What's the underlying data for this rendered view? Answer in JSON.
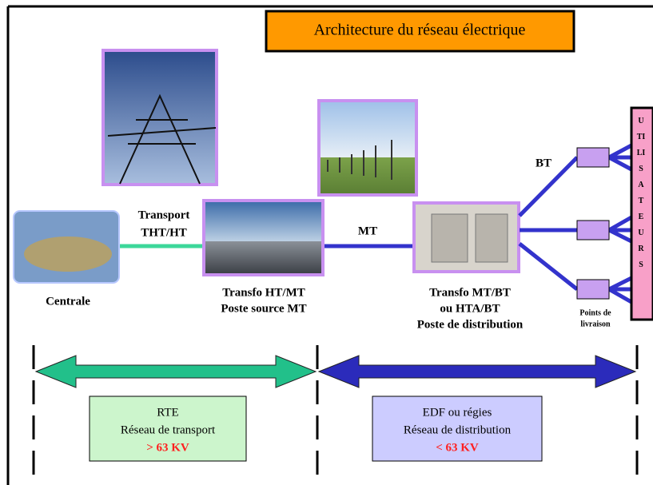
{
  "title": "Architecture du réseau électrique",
  "nodes": [
    {
      "label": "Centrale"
    },
    {
      "label": [
        "Transfo HT/MT",
        "Poste source MT"
      ]
    },
    {
      "label": [
        "Transfo MT/BT",
        "ou HTA/BT",
        "Poste de distribution"
      ]
    }
  ],
  "links": [
    {
      "label": [
        "Transport",
        "THT/HT"
      ]
    },
    {
      "label": "MT"
    },
    {
      "label": "BT"
    }
  ],
  "delivery_points": {
    "label": [
      "Points de",
      "livraison"
    ]
  },
  "users": "UTILISATEURS",
  "zones": [
    {
      "lines": [
        "RTE",
        "Réseau de transport"
      ],
      "voltage": "> 63 KV"
    },
    {
      "lines": [
        "EDF ou régies",
        "Réseau de distribution"
      ],
      "voltage": "< 63 KV"
    }
  ]
}
